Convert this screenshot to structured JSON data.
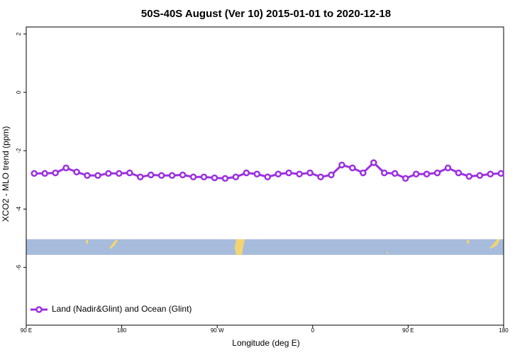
{
  "chart_data": {
    "type": "line",
    "title": "50S-40S August (Ver 10)   2015-01-01 to 2020-12-18",
    "x_label": "Longitude (deg E)",
    "y_label": "XCO2 - MLO trend (ppm)",
    "x": [
      97.5,
      107.5,
      117.5,
      127.5,
      137.5,
      147.5,
      157.5,
      167.5,
      177.5,
      187.5,
      197.5,
      207.5,
      217.5,
      227.5,
      237.5,
      247.5,
      257.5,
      267.5,
      277.5,
      287.5,
      297.5,
      307.5,
      317.5,
      327.5,
      337.5,
      347.5,
      357.5,
      367.5,
      377.5,
      387.5,
      397.5,
      407.5,
      417.5,
      427.5,
      437.5,
      447.5,
      457.5,
      467.5,
      477.5,
      487.5,
      497.5,
      507.5,
      517.5,
      527.5,
      537.5
    ],
    "series": [
      {
        "name": "Land (Nadir&Glint) and Ocean (Glint)",
        "color": "#9b30e0",
        "values": [
          -2.78,
          -2.78,
          -2.76,
          -2.59,
          -2.73,
          -2.85,
          -2.85,
          -2.78,
          -2.78,
          -2.76,
          -2.9,
          -2.83,
          -2.85,
          -2.85,
          -2.83,
          -2.9,
          -2.9,
          -2.93,
          -2.95,
          -2.9,
          -2.76,
          -2.8,
          -2.9,
          -2.8,
          -2.76,
          -2.8,
          -2.76,
          -2.9,
          -2.83,
          -2.49,
          -2.59,
          -2.76,
          -2.41,
          -2.76,
          -2.78,
          -2.95,
          -2.8,
          -2.8,
          -2.76,
          -2.59,
          -2.76,
          -2.88,
          -2.85,
          -2.8,
          -2.78
        ]
      }
    ],
    "xlim": [
      90,
      540
    ],
    "xticks": [
      {
        "value": 90,
        "label": "90 E"
      },
      180,
      {
        "value": 270,
        "label": "90 W"
      },
      {
        "value": 360,
        "label": "0"
      },
      {
        "value": 450,
        "label": "90 E"
      },
      {
        "value": 540,
        "label": "180"
      }
    ],
    "ylim": [
      -7.98,
      2.24
    ],
    "yticks": [
      2,
      0,
      -2,
      -4,
      -6
    ],
    "legend": "bottom-left"
  }
}
